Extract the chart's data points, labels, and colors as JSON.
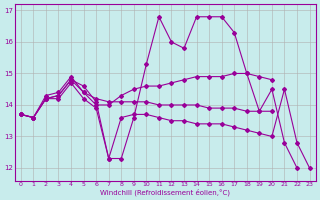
{
  "xlabel": "Windchill (Refroidissement éolien,°C)",
  "background_color": "#c8ecec",
  "line_color": "#990099",
  "grid_color": "#b0b0b0",
  "ylim": [
    11.6,
    17.2
  ],
  "xlim": [
    -0.5,
    23.5
  ],
  "yticks": [
    12,
    13,
    14,
    15,
    16,
    17
  ],
  "xticks": [
    0,
    1,
    2,
    3,
    4,
    5,
    6,
    7,
    8,
    9,
    10,
    11,
    12,
    13,
    14,
    15,
    16,
    17,
    18,
    19,
    20,
    21,
    22,
    23
  ],
  "series": [
    [
      13.7,
      13.6,
      14.2,
      14.3,
      14.8,
      14.6,
      14.1,
      12.3,
      12.3,
      13.6,
      15.3,
      16.8,
      16.0,
      15.8,
      16.8,
      16.8,
      16.8,
      16.3,
      15.0,
      13.8,
      14.5,
      12.8,
      12.0,
      null
    ],
    [
      13.7,
      13.6,
      14.3,
      14.4,
      14.9,
      14.4,
      14.0,
      14.0,
      14.3,
      14.5,
      14.6,
      14.6,
      14.7,
      14.8,
      14.9,
      14.9,
      14.9,
      15.0,
      15.0,
      14.9,
      14.8,
      null,
      null,
      null
    ],
    [
      13.7,
      13.6,
      14.2,
      14.3,
      14.8,
      14.4,
      14.2,
      14.1,
      14.1,
      14.1,
      14.1,
      14.0,
      14.0,
      14.0,
      14.0,
      13.9,
      13.9,
      13.9,
      13.8,
      13.8,
      13.8,
      null,
      null,
      null
    ],
    [
      13.7,
      13.6,
      14.2,
      14.2,
      14.7,
      14.2,
      13.9,
      12.3,
      13.6,
      13.7,
      13.7,
      13.6,
      13.5,
      13.5,
      13.4,
      13.4,
      13.4,
      13.3,
      13.2,
      13.1,
      13.0,
      14.5,
      12.8,
      12.0
    ]
  ]
}
